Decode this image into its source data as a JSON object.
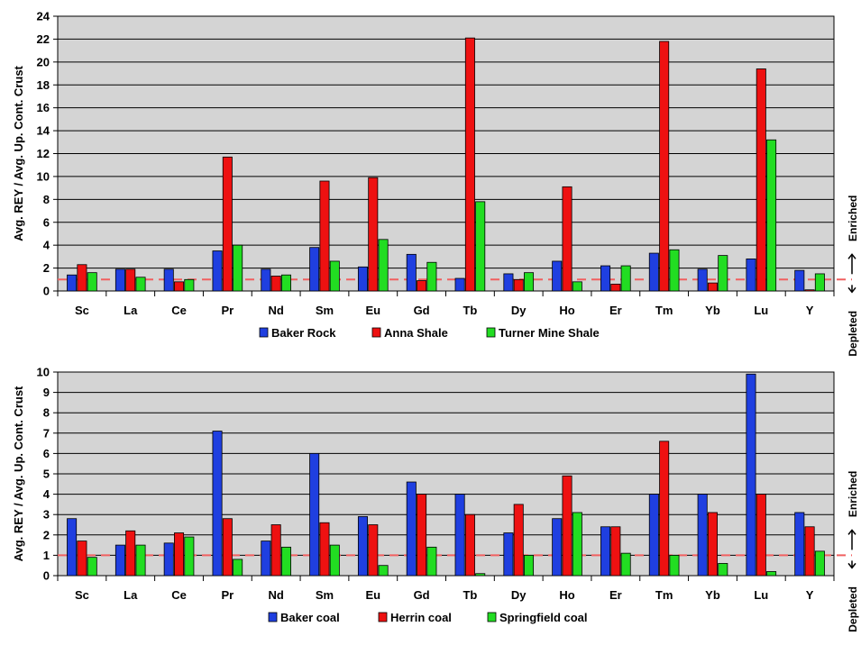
{
  "chart_data": [
    {
      "type": "bar",
      "categories": [
        "Sc",
        "La",
        "Ce",
        "Pr",
        "Nd",
        "Sm",
        "Eu",
        "Gd",
        "Tb",
        "Dy",
        "Ho",
        "Er",
        "Tm",
        "Yb",
        "Lu",
        "Y"
      ],
      "ylabel": "Avg. REY / Avg. Up. Cont. Crust",
      "ylim": [
        0,
        24
      ],
      "yticks": [
        0,
        2,
        4,
        6,
        8,
        10,
        12,
        14,
        16,
        18,
        20,
        22,
        24
      ],
      "grid": true,
      "reference_line": 1,
      "legend_position": "bottom",
      "series": [
        {
          "name": "Baker Rock",
          "color": "#1f3fe0",
          "values": [
            1.4,
            1.9,
            1.9,
            3.5,
            1.9,
            3.8,
            2.1,
            3.2,
            1.1,
            1.5,
            2.6,
            2.2,
            3.3,
            1.9,
            2.8,
            1.8
          ]
        },
        {
          "name": "Anna Shale",
          "color": "#ee1111",
          "values": [
            2.3,
            1.9,
            0.8,
            11.7,
            1.3,
            9.6,
            9.9,
            0.9,
            22.1,
            1.0,
            9.1,
            0.6,
            21.8,
            0.7,
            19.4,
            0.1
          ]
        },
        {
          "name": "Turner Mine Shale",
          "color": "#22dd22",
          "values": [
            1.6,
            1.2,
            1.0,
            4.0,
            1.4,
            2.6,
            4.5,
            2.5,
            7.8,
            1.6,
            0.8,
            2.2,
            3.6,
            3.1,
            13.2,
            1.5
          ]
        }
      ]
    },
    {
      "type": "bar",
      "categories": [
        "Sc",
        "La",
        "Ce",
        "Pr",
        "Nd",
        "Sm",
        "Eu",
        "Gd",
        "Tb",
        "Dy",
        "Ho",
        "Er",
        "Tm",
        "Yb",
        "Lu",
        "Y"
      ],
      "ylabel": "Avg. REY / Avg. Up. Cont. Crust",
      "ylim": [
        0,
        10
      ],
      "yticks": [
        0,
        1,
        2,
        3,
        4,
        5,
        6,
        7,
        8,
        9,
        10
      ],
      "grid": true,
      "reference_line": 1,
      "legend_position": "bottom",
      "series": [
        {
          "name": "Baker coal",
          "color": "#1f3fe0",
          "values": [
            2.8,
            1.5,
            1.6,
            7.1,
            1.7,
            6.0,
            2.9,
            4.6,
            4.0,
            2.1,
            2.8,
            2.4,
            4.0,
            4.0,
            9.9,
            3.1
          ]
        },
        {
          "name": "Herrin coal",
          "color": "#ee1111",
          "values": [
            1.7,
            2.2,
            2.1,
            2.8,
            2.5,
            2.6,
            2.5,
            4.0,
            3.0,
            3.5,
            4.9,
            2.4,
            6.6,
            3.1,
            4.0,
            2.4
          ]
        },
        {
          "name": "Springfield coal",
          "color": "#22dd22",
          "values": [
            0.9,
            1.5,
            1.9,
            0.8,
            1.4,
            1.5,
            0.5,
            1.4,
            0.1,
            1.0,
            3.1,
            1.1,
            1.0,
            0.6,
            0.2,
            1.2
          ]
        }
      ]
    }
  ],
  "side_labels": [
    {
      "enriched": "Enriched",
      "depleted": "Depleted"
    },
    {
      "enriched": "Enriched",
      "depleted": "Depleted"
    }
  ],
  "colors": {
    "plot_bg": "#d4d4d4",
    "grid": "#000000",
    "reference": "#f06060"
  }
}
